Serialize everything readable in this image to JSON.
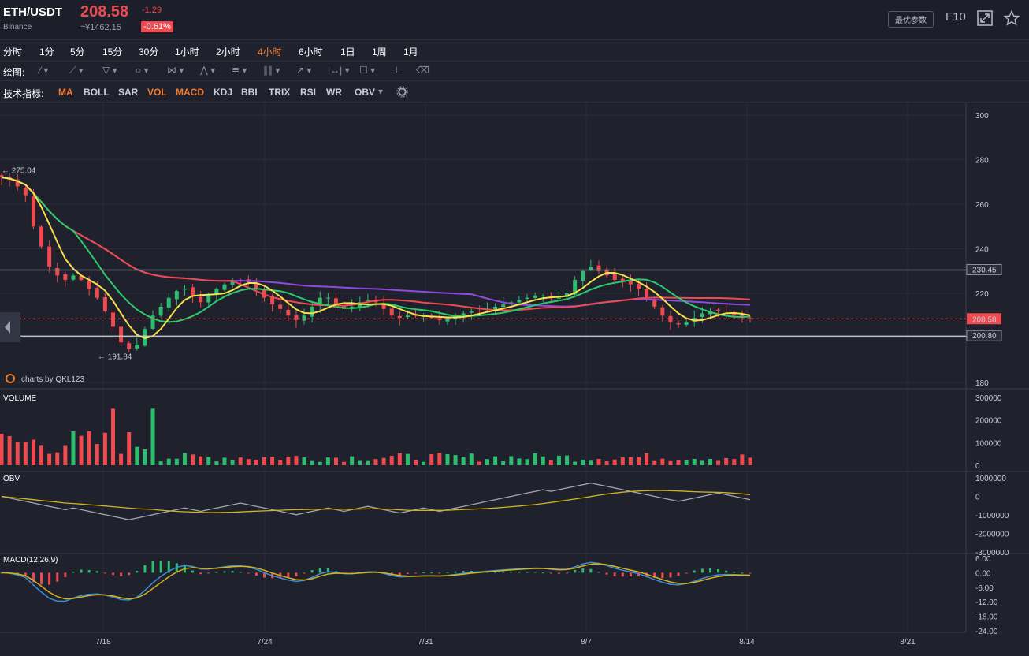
{
  "header": {
    "symbol": "ETH/USDT",
    "exchange": "Binance",
    "price": "208.58",
    "cny_price": "≈¥1462.15",
    "change": "-1.29",
    "change_pct": "-0.61%",
    "best_params_label": "最优参数",
    "f10_label": "F10"
  },
  "timeframes": [
    "分时",
    "1分",
    "5分",
    "15分",
    "30分",
    "1小时",
    "2小时",
    "4小时",
    "6小时",
    "1日",
    "1周",
    "1月"
  ],
  "active_timeframe": "4小时",
  "drawing": {
    "label": "绘图:",
    "tools": [
      "line-tool",
      "pen-tool",
      "triangle-tool",
      "circle-tool",
      "zigzag-tool",
      "path-tool",
      "fib-tool",
      "bars-tool",
      "arrow-tool",
      "range-tool",
      "comment-tool",
      "measure-tool",
      "delete-tool"
    ]
  },
  "indicators": {
    "label": "技术指标:",
    "items": [
      "MA",
      "BOLL",
      "SAR",
      "VOL",
      "MACD",
      "KDJ",
      "BBI",
      "TRIX",
      "RSI",
      "WR",
      "OBV"
    ],
    "active": [
      "MA",
      "VOL",
      "MACD"
    ]
  },
  "watermark": "charts by QKL123",
  "colors": {
    "up": "#2ebd6e",
    "down": "#ef4a50",
    "ma5": "#f7e14b",
    "ma10": "#2bcb6c",
    "ma30": "#ef4a50",
    "ma60": "#8f4be0",
    "obv": "#a3a7b3",
    "obv_ma": "#d4b21e",
    "dif": "#3b8fd9",
    "dea": "#d4b21e",
    "accent": "#f07b2e"
  },
  "chart_data": {
    "type": "candlestick",
    "x_ticks": [
      "7/18",
      "7/24",
      "7/31",
      "8/7",
      "8/14",
      "8/21"
    ],
    "price_axis": {
      "ticks": [
        "300",
        "280",
        "260",
        "240",
        "220",
        "180"
      ],
      "range": [
        180,
        300
      ]
    },
    "levels": [
      {
        "label": "230.45",
        "value": 230.45,
        "style": "resistance"
      },
      {
        "label": "200.80",
        "value": 200.8,
        "style": "support"
      }
    ],
    "current_price": {
      "label": "208.58",
      "value": 208.58
    },
    "annotations": [
      {
        "label": "275.04",
        "value": 275.04,
        "note": "high"
      },
      {
        "label": "191.84",
        "value": 191.84,
        "note": "low"
      }
    ],
    "close_path_points": [
      [
        0,
        272
      ],
      [
        1,
        271
      ],
      [
        2,
        268
      ],
      [
        3,
        264
      ],
      [
        4,
        250
      ],
      [
        5,
        241
      ],
      [
        6,
        232
      ],
      [
        7,
        228
      ],
      [
        8,
        226
      ],
      [
        9,
        228
      ],
      [
        10,
        226
      ],
      [
        11,
        222
      ],
      [
        12,
        218
      ],
      [
        13,
        212
      ],
      [
        14,
        205
      ],
      [
        15,
        198
      ],
      [
        16,
        195
      ],
      [
        17,
        197
      ],
      [
        18,
        204
      ],
      [
        19,
        210
      ],
      [
        20,
        214
      ],
      [
        21,
        218
      ],
      [
        22,
        221
      ],
      [
        23,
        222
      ],
      [
        24,
        219
      ],
      [
        25,
        216
      ],
      [
        26,
        219
      ],
      [
        27,
        222
      ],
      [
        28,
        224
      ],
      [
        29,
        226
      ],
      [
        30,
        226
      ],
      [
        31,
        225
      ],
      [
        32,
        222
      ],
      [
        33,
        218
      ],
      [
        34,
        215
      ],
      [
        35,
        213
      ],
      [
        36,
        210
      ],
      [
        37,
        208
      ],
      [
        38,
        210
      ],
      [
        39,
        214
      ],
      [
        40,
        218
      ],
      [
        41,
        218
      ],
      [
        42,
        215
      ],
      [
        43,
        213
      ],
      [
        44,
        214
      ],
      [
        45,
        216
      ],
      [
        46,
        217
      ],
      [
        47,
        216
      ],
      [
        48,
        213
      ],
      [
        49,
        210
      ],
      [
        50,
        209
      ],
      [
        51,
        210
      ],
      [
        52,
        210
      ],
      [
        53,
        210
      ],
      [
        54,
        209
      ],
      [
        55,
        208
      ],
      [
        56,
        209
      ],
      [
        57,
        210
      ],
      [
        58,
        211
      ],
      [
        59,
        212
      ],
      [
        60,
        212
      ],
      [
        61,
        213
      ],
      [
        62,
        214
      ],
      [
        63,
        215
      ],
      [
        64,
        216
      ],
      [
        65,
        217
      ],
      [
        66,
        218
      ],
      [
        67,
        219
      ],
      [
        68,
        219
      ],
      [
        69,
        218
      ],
      [
        70,
        218
      ],
      [
        71,
        220
      ],
      [
        72,
        226
      ],
      [
        73,
        230
      ],
      [
        74,
        232
      ],
      [
        75,
        230
      ],
      [
        76,
        228
      ],
      [
        77,
        226
      ],
      [
        78,
        225
      ],
      [
        79,
        224
      ],
      [
        80,
        222
      ],
      [
        81,
        218
      ],
      [
        82,
        214
      ],
      [
        83,
        210
      ],
      [
        84,
        207
      ],
      [
        85,
        206
      ],
      [
        86,
        207
      ],
      [
        87,
        209
      ],
      [
        88,
        211
      ],
      [
        89,
        212
      ],
      [
        90,
        212
      ],
      [
        91,
        211
      ],
      [
        92,
        210
      ],
      [
        93,
        209
      ],
      [
        94,
        208.58
      ]
    ],
    "volume_axis": {
      "ticks": [
        "300000",
        "200000",
        "100000",
        "0"
      ],
      "range": [
        0,
        300000
      ]
    },
    "obv_axis": {
      "ticks": [
        "1000000",
        "0",
        "-1000000",
        "-2000000",
        "-3000000"
      ],
      "range": [
        -3000000,
        1000000
      ]
    },
    "macd_axis": {
      "ticks": [
        "6.00",
        "0.00",
        "-6.00",
        "-12.00",
        "-18.00",
        "-24.00"
      ],
      "range": [
        -24,
        6
      ]
    }
  },
  "panes": {
    "volume_title": "VOLUME",
    "obv_title": "OBV",
    "macd_title": "MACD(12,26,9)"
  }
}
